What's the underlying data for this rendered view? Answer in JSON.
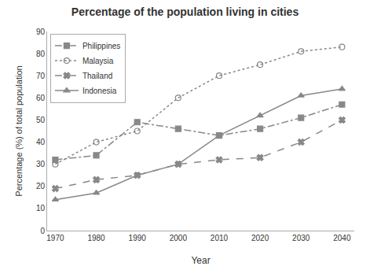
{
  "chart_data": {
    "type": "line",
    "title": "Percentage of the population living in cities",
    "xlabel": "Year",
    "ylabel": "Percentage (%) of total population",
    "x": [
      1970,
      1980,
      1990,
      2000,
      2010,
      2020,
      2030,
      2040
    ],
    "xlim": [
      1968,
      2043
    ],
    "xticks": [
      1970,
      1980,
      1990,
      2000,
      2010,
      2020,
      2030,
      2040
    ],
    "ylim": [
      0,
      90
    ],
    "yticks": [
      0,
      10,
      20,
      30,
      40,
      50,
      60,
      70,
      80,
      90
    ],
    "grid": false,
    "legend": "upper left",
    "series": [
      {
        "name": "Philippines",
        "color": "#888888",
        "marker": "square",
        "line_style": "dashdot",
        "values": [
          32,
          34,
          49,
          46,
          43,
          46,
          51,
          57
        ]
      },
      {
        "name": "Malaysia",
        "color": "#888888",
        "marker": "circle-open",
        "line_style": "dotted",
        "values": [
          30,
          40,
          45,
          60,
          70,
          75,
          81,
          83
        ]
      },
      {
        "name": "Thailand",
        "color": "#888888",
        "marker": "x",
        "line_style": "dashed",
        "values": [
          19,
          23,
          25,
          30,
          32,
          33,
          40,
          50
        ]
      },
      {
        "name": "Indonesia",
        "color": "#888888",
        "marker": "triangle-up",
        "line_style": "solid",
        "values": [
          14,
          17,
          25,
          30,
          43,
          52,
          61,
          64
        ]
      }
    ]
  }
}
